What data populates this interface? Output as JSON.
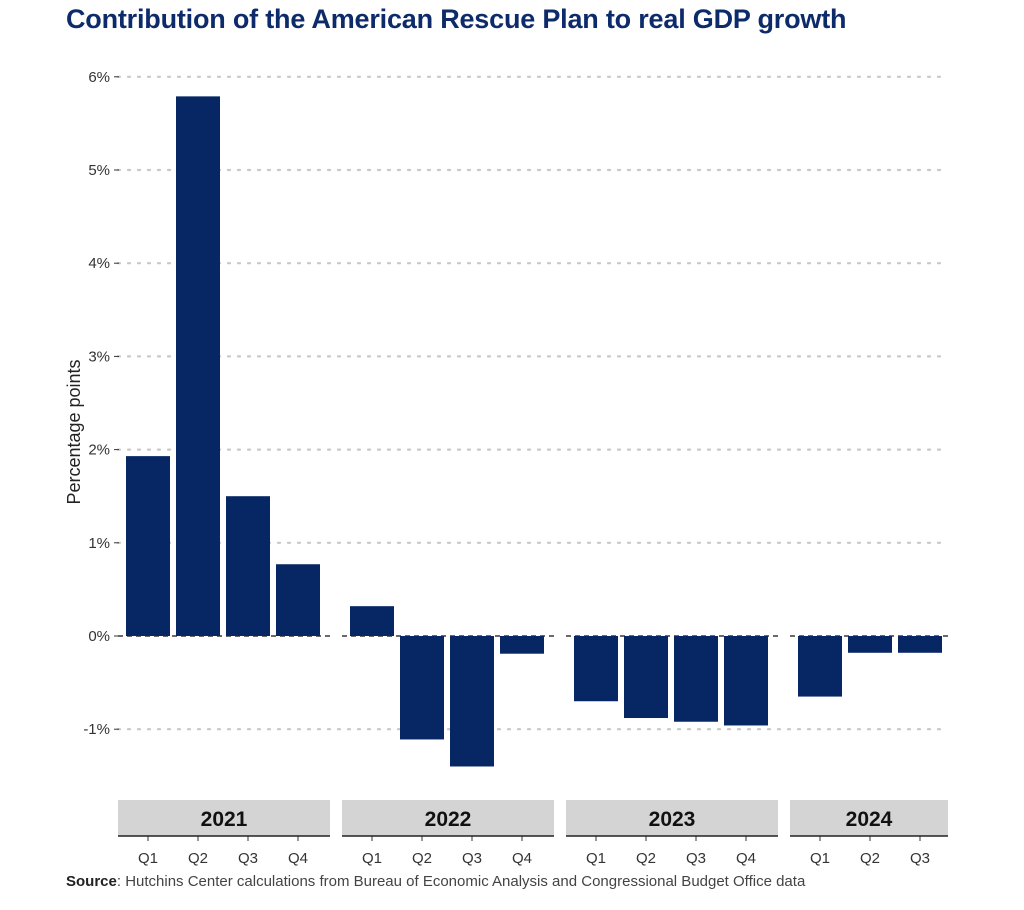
{
  "title": "Contribution of the American Rescue Plan to real GDP growth",
  "source": {
    "label": "Source",
    "text": ": Hutchins Center calculations from Bureau of Economic Analysis and Congressional Budget Office data"
  },
  "colors": {
    "bar": "#062764",
    "grid": "#c8c8c8",
    "strip": "#d4d4d4"
  },
  "chart_data": {
    "type": "bar",
    "title": "Contribution of the American Rescue Plan to real GDP growth",
    "xlabel": "",
    "ylabel": "Percentage points",
    "ylim": [
      -1.5,
      6.0
    ],
    "yticks": [
      -1,
      0,
      1,
      2,
      3,
      4,
      5,
      6
    ],
    "ytick_labels": [
      "-1%",
      "0%",
      "1%",
      "2%",
      "3%",
      "4%",
      "5%",
      "6%"
    ],
    "grid": "horizontal-dotted",
    "facets": [
      {
        "year": "2021",
        "quarters": [
          "Q1",
          "Q2",
          "Q3",
          "Q4"
        ],
        "values": [
          1.93,
          5.79,
          1.5,
          0.77
        ]
      },
      {
        "year": "2022",
        "quarters": [
          "Q1",
          "Q2",
          "Q3",
          "Q4"
        ],
        "values": [
          0.32,
          -1.11,
          -1.4,
          -0.19
        ]
      },
      {
        "year": "2023",
        "quarters": [
          "Q1",
          "Q2",
          "Q3",
          "Q4"
        ],
        "values": [
          -0.7,
          -0.88,
          -0.92,
          -0.96
        ]
      },
      {
        "year": "2024",
        "quarters": [
          "Q1",
          "Q2",
          "Q3"
        ],
        "values": [
          -0.65,
          -0.18,
          -0.18
        ]
      }
    ]
  }
}
